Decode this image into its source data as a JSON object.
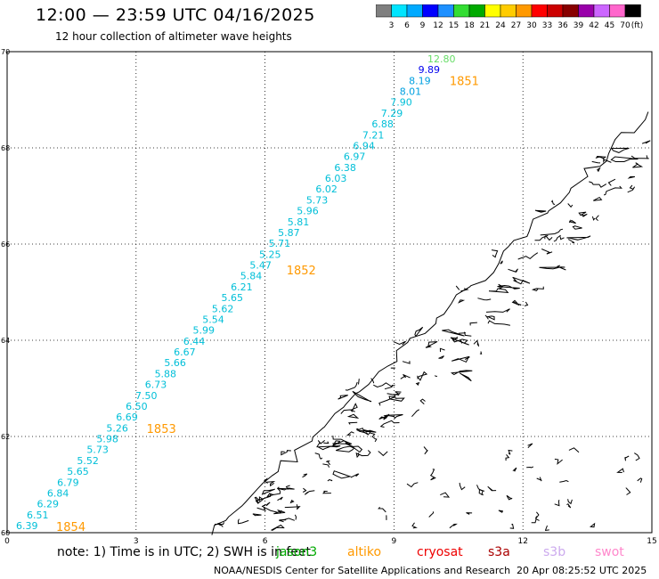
{
  "title": "12:00 — 23:59 UTC 04/16/2025",
  "subtitle": "12 hour collection of altimeter wave heights",
  "colorbar": {
    "colors": [
      "#7f7f7f",
      "#00e5ff",
      "#00aaff",
      "#0000ff",
      "#1e90ff",
      "#33dd33",
      "#00aa00",
      "#ffff00",
      "#ffcc00",
      "#ff9900",
      "#ff0000",
      "#cc0000",
      "#880000",
      "#9900aa",
      "#cc66ff",
      "#ff66cc",
      "#000000"
    ],
    "labels": [
      "3",
      "6",
      "9",
      "12",
      "15",
      "18",
      "21",
      "24",
      "27",
      "30",
      "33",
      "36",
      "39",
      "42",
      "45",
      "70"
    ],
    "unit": "(ft)"
  },
  "axes": {
    "x_ticks": [
      "0",
      "3",
      "6",
      "9",
      "12",
      "15"
    ],
    "y_ticks": [
      "60",
      "62",
      "64",
      "66",
      "68",
      "70"
    ]
  },
  "track_values": [
    {
      "label": "6.39",
      "color": "#00bfd8"
    },
    {
      "label": "6.51",
      "color": "#00bfd8"
    },
    {
      "label": "6.29",
      "color": "#00bfd8"
    },
    {
      "label": "6.84",
      "color": "#00bfd8"
    },
    {
      "label": "6.79",
      "color": "#00bfd8"
    },
    {
      "label": "5.65",
      "color": "#00bfd8"
    },
    {
      "label": "5.52",
      "color": "#00bfd8"
    },
    {
      "label": "5.73",
      "color": "#00bfd8"
    },
    {
      "label": "5.98",
      "color": "#00bfd8"
    },
    {
      "label": "5.26",
      "color": "#00bfd8"
    },
    {
      "label": "6.69",
      "color": "#00bfd8"
    },
    {
      "label": "6.50",
      "color": "#00bfd8"
    },
    {
      "label": "7.50",
      "color": "#00bfd8"
    },
    {
      "label": "6.73",
      "color": "#00bfd8"
    },
    {
      "label": "5.88",
      "color": "#00bfd8"
    },
    {
      "label": "5.66",
      "color": "#00bfd8"
    },
    {
      "label": "6.67",
      "color": "#00bfd8"
    },
    {
      "label": "6.44",
      "color": "#00bfd8"
    },
    {
      "label": "5.99",
      "color": "#00bfd8"
    },
    {
      "label": "5.54",
      "color": "#00bfd8"
    },
    {
      "label": "5.62",
      "color": "#00bfd8"
    },
    {
      "label": "5.65",
      "color": "#00bfd8"
    },
    {
      "label": "6.21",
      "color": "#00bfd8"
    },
    {
      "label": "5.84",
      "color": "#00bfd8"
    },
    {
      "label": "5.47",
      "color": "#00bfd8"
    },
    {
      "label": "5.25",
      "color": "#00bfd8"
    },
    {
      "label": "5.71",
      "color": "#00bfd8"
    },
    {
      "label": "5.87",
      "color": "#00bfd8"
    },
    {
      "label": "5.81",
      "color": "#00bfd8"
    },
    {
      "label": "5.96",
      "color": "#00bfd8"
    },
    {
      "label": "5.73",
      "color": "#00bfd8"
    },
    {
      "label": "6.02",
      "color": "#00bfd8"
    },
    {
      "label": "6.03",
      "color": "#00bfd8"
    },
    {
      "label": "6.38",
      "color": "#00bfd8"
    },
    {
      "label": "6.97",
      "color": "#00bfd8"
    },
    {
      "label": "6.94",
      "color": "#00bfd8"
    },
    {
      "label": "7.21",
      "color": "#00bfd8"
    },
    {
      "label": "6.88",
      "color": "#00bfd8"
    },
    {
      "label": "7.29",
      "color": "#00bfd8"
    },
    {
      "label": "7.90",
      "color": "#00bfd8"
    },
    {
      "label": "8.01",
      "color": "#00a0e0"
    },
    {
      "label": "8.19",
      "color": "#00a0e0"
    },
    {
      "label": "9.89",
      "color": "#0000ee"
    },
    {
      "label": "12.80",
      "color": "#66dd66"
    }
  ],
  "time_labels": [
    "1851",
    "1852",
    "1853",
    "1854"
  ],
  "time_label_color": "#ff9900",
  "notes": {
    "prefix": "note:  1) Time is in UTC;  2) SWH is in feet",
    "satellites": [
      {
        "label": "jason3",
        "color": "#00aa00"
      },
      {
        "label": "altiko",
        "color": "#ff9900"
      },
      {
        "label": "cryosat",
        "color": "#ee0000"
      },
      {
        "label": "s3a",
        "color": "#aa0000"
      },
      {
        "label": "s3b",
        "color": "#ccaaee"
      },
      {
        "label": "swot",
        "color": "#ff88cc"
      }
    ]
  },
  "credit": "NOAA/NESDIS Center for Satellite Applications and Research",
  "timestamp": "20 Apr 08:25:52 UTC 2025"
}
